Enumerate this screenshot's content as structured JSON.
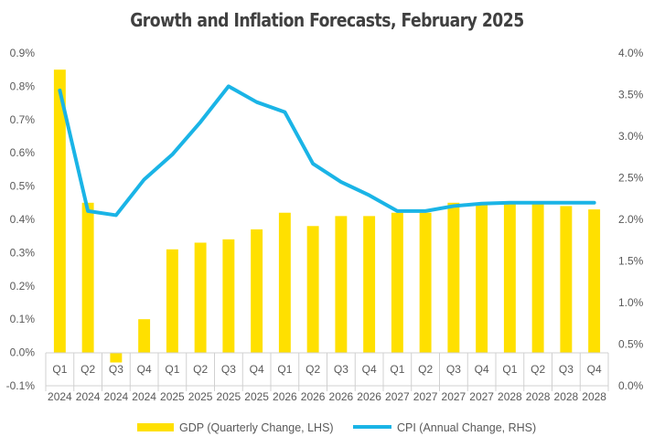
{
  "chart_data": {
    "type": "bar+line",
    "title": "Growth and Inflation Forecasts, February 2025",
    "categories_quarter": [
      "Q1",
      "Q2",
      "Q3",
      "Q4",
      "Q1",
      "Q2",
      "Q3",
      "Q4",
      "Q1",
      "Q2",
      "Q3",
      "Q4",
      "Q1",
      "Q2",
      "Q3",
      "Q4",
      "Q1",
      "Q2",
      "Q3",
      "Q4"
    ],
    "categories_year": [
      "2024",
      "2024",
      "2024",
      "2024",
      "2025",
      "2025",
      "2025",
      "2025",
      "2026",
      "2026",
      "2026",
      "2026",
      "2027",
      "2027",
      "2027",
      "2027",
      "2028",
      "2028",
      "2028",
      "2028"
    ],
    "y_left": {
      "min": -0.1,
      "max": 0.9,
      "step": 0.1,
      "tick_labels": [
        "-0.1%",
        "0.0%",
        "0.1%",
        "0.2%",
        "0.3%",
        "0.4%",
        "0.5%",
        "0.6%",
        "0.7%",
        "0.8%",
        "0.9%"
      ]
    },
    "y_right": {
      "min": 0.0,
      "max": 4.0,
      "step": 0.5,
      "tick_labels": [
        "0.0%",
        "0.5%",
        "1.0%",
        "1.5%",
        "2.0%",
        "2.5%",
        "3.0%",
        "3.5%",
        "4.0%"
      ]
    },
    "series": [
      {
        "name": "GDP (Quarterly Change, LHS)",
        "kind": "bar",
        "axis": "left",
        "color": "#FFE000",
        "values": [
          0.85,
          0.45,
          -0.03,
          0.1,
          0.31,
          0.33,
          0.34,
          0.37,
          0.42,
          0.38,
          0.41,
          0.41,
          0.42,
          0.42,
          0.45,
          0.45,
          0.45,
          0.45,
          0.44,
          0.43
        ]
      },
      {
        "name": "CPI (Annual Change, RHS)",
        "kind": "line",
        "axis": "right",
        "color": "#1AB4E6",
        "values": [
          3.55,
          2.1,
          2.05,
          2.48,
          2.78,
          3.17,
          3.6,
          3.41,
          3.29,
          2.67,
          2.45,
          2.29,
          2.1,
          2.1,
          2.16,
          2.19,
          2.2,
          2.2,
          2.2,
          2.2
        ]
      }
    ],
    "legend_position": "bottom"
  }
}
